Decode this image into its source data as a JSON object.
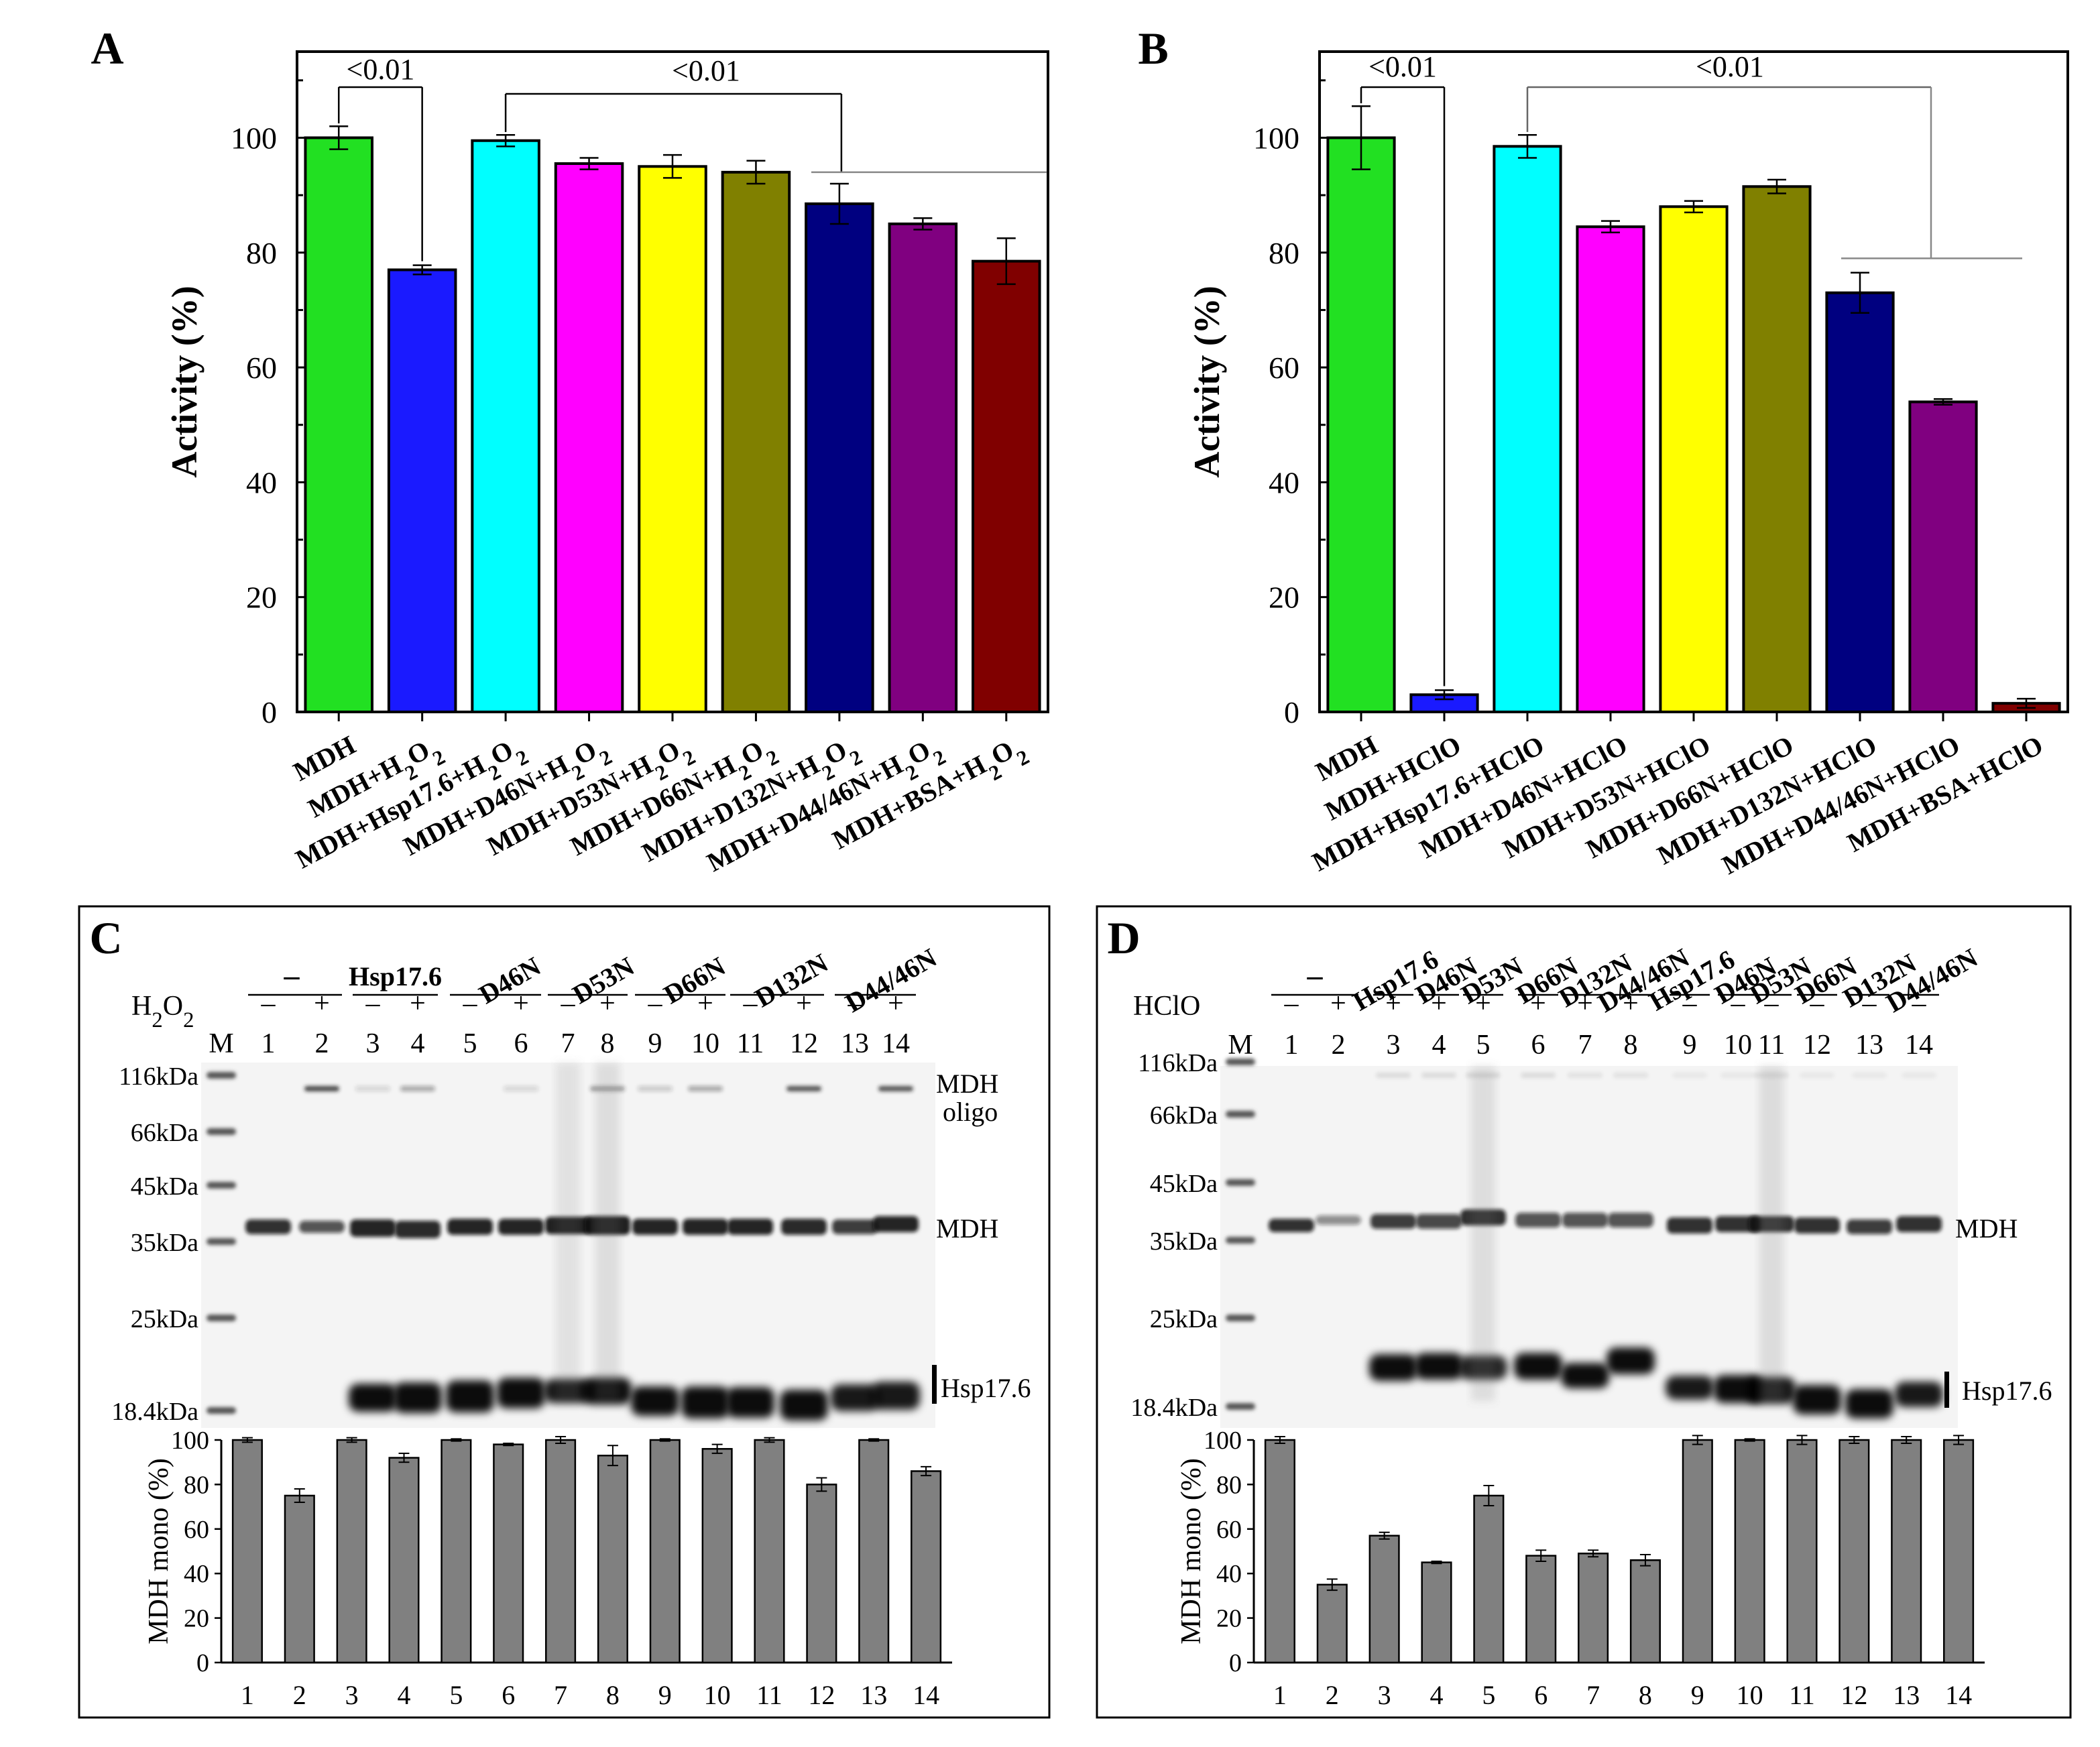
{
  "chart_data": [
    {
      "panel": "A",
      "type": "bar",
      "title": "A",
      "ylabel": "Activity (%)",
      "xlabel": "",
      "ylim": [
        0,
        115
      ],
      "yticks": [
        "0",
        "20",
        "40",
        "60",
        "80",
        "100"
      ],
      "categories": [
        "MDH",
        "MDH+H2O2",
        "MDH+Hsp17.6+H2O2",
        "MDH+D46N+H2O2",
        "MDH+D53N+H2O2",
        "MDH+D66N+H2O2",
        "MDH+D132N+H2O2",
        "MDH+D44/46N+H2O2",
        "MDH+BSA+H2O2"
      ],
      "values": [
        100,
        77,
        99.5,
        95.5,
        95,
        94,
        88.5,
        85,
        78.5
      ],
      "errors": [
        2,
        0.8,
        1,
        1,
        2,
        2,
        3.5,
        1,
        4
      ],
      "colors": [
        "#22e022",
        "#1a1aff",
        "#00ffff",
        "#ff00ff",
        "#ffff00",
        "#808000",
        "#000080",
        "#800080",
        "#800000"
      ],
      "annotations": [
        "<0.01",
        "<0.01"
      ]
    },
    {
      "panel": "B",
      "type": "bar",
      "title": "B",
      "ylabel": "Activity (%)",
      "xlabel": "",
      "ylim": [
        0,
        115
      ],
      "yticks": [
        "0",
        "20",
        "40",
        "60",
        "80",
        "100"
      ],
      "categories": [
        "MDH",
        "MDH+HClO",
        "MDH+Hsp17.6+HClO",
        "MDH+D46N+HClO",
        "MDH+D53N+HClO",
        "MDH+D66N+HClO",
        "MDH+D132N+HClO",
        "MDH+D44/46N+HClO",
        "MDH+BSA+HClO"
      ],
      "values": [
        100,
        3,
        98.5,
        84.5,
        88,
        91.5,
        73,
        54,
        1.5
      ],
      "errors": [
        5.5,
        0.8,
        2,
        1,
        1,
        1.2,
        3.5,
        0.5,
        0.8
      ],
      "colors": [
        "#22e022",
        "#1a1aff",
        "#00ffff",
        "#ff00ff",
        "#ffff00",
        "#808000",
        "#000080",
        "#800080",
        "#800000"
      ],
      "annotations": [
        "<0.01",
        "<0.01"
      ]
    },
    {
      "panel": "C",
      "type": "bar",
      "title": "C",
      "ylabel": "MDH mono (%)",
      "ylim": [
        0,
        100
      ],
      "yticks": [
        "0",
        "20",
        "40",
        "60",
        "80",
        "100"
      ],
      "categories": [
        "1",
        "2",
        "3",
        "4",
        "5",
        "6",
        "7",
        "8",
        "9",
        "10",
        "11",
        "12",
        "13",
        "14"
      ],
      "values": [
        100,
        75,
        100,
        92,
        100,
        98,
        100,
        93,
        100,
        96,
        100,
        80,
        100,
        86
      ],
      "errors": [
        1,
        3,
        1,
        2,
        0.5,
        0.5,
        1.5,
        4.5,
        0.5,
        2,
        1,
        3,
        0.5,
        2
      ],
      "bar_color": "#808080",
      "gel": {
        "treatment_label": "H2O2",
        "group_labels": [
          "–",
          "Hsp17.6",
          "D46N",
          "D53N",
          "D66N",
          "D132N",
          "D44/46N"
        ],
        "signs": [
          "–",
          "+",
          "–",
          "+",
          "–",
          "+",
          "–",
          "+",
          "–",
          "+",
          "–",
          "+",
          "–",
          "+"
        ],
        "marker_lane": "M",
        "lanes": [
          "1",
          "2",
          "3",
          "4",
          "5",
          "6",
          "7",
          "8",
          "9",
          "10",
          "11",
          "12",
          "13",
          "14"
        ],
        "markers": [
          "116kDa",
          "66kDa",
          "45kDa",
          "35kDa",
          "25kDa",
          "18.4kDa"
        ],
        "band_labels": [
          "MDH",
          "oligo",
          "MDH",
          "Hsp17.6"
        ]
      }
    },
    {
      "panel": "D",
      "type": "bar",
      "title": "D",
      "ylabel": "MDH mono (%)",
      "ylim": [
        0,
        100
      ],
      "yticks": [
        "0",
        "20",
        "40",
        "60",
        "80",
        "100"
      ],
      "categories": [
        "1",
        "2",
        "3",
        "4",
        "5",
        "6",
        "7",
        "8",
        "9",
        "10",
        "11",
        "12",
        "13",
        "14"
      ],
      "values": [
        100,
        35,
        57,
        45,
        75,
        48,
        49,
        46,
        100,
        100,
        100,
        100,
        100,
        100
      ],
      "errors": [
        1.5,
        2.5,
        1.5,
        0.5,
        4.5,
        2.5,
        1.5,
        2.5,
        2,
        0.5,
        2,
        1.5,
        1.5,
        2
      ],
      "bar_color": "#808080",
      "gel": {
        "treatment_label": "HClO",
        "group_labels": [
          "–",
          "Hsp17.6",
          "D46N",
          "D53N",
          "D66N",
          "D132N",
          "D44/46N",
          "Hsp17.6",
          "D46N",
          "D53N",
          "D66N",
          "D132N",
          "D44/46N"
        ],
        "signs": [
          "–",
          "+",
          "+",
          "+",
          "+",
          "+",
          "+",
          "+",
          "–",
          "–",
          "–",
          "–",
          "–",
          "–"
        ],
        "marker_lane": "M",
        "lanes": [
          "1",
          "2",
          "3",
          "4",
          "5",
          "6",
          "7",
          "8",
          "9",
          "10",
          "11",
          "12",
          "13",
          "14"
        ],
        "markers": [
          "116kDa",
          "66kDa",
          "45kDa",
          "35kDa",
          "25kDa",
          "18.4kDa"
        ],
        "band_labels": [
          "MDH",
          "Hsp17.6"
        ]
      }
    }
  ]
}
